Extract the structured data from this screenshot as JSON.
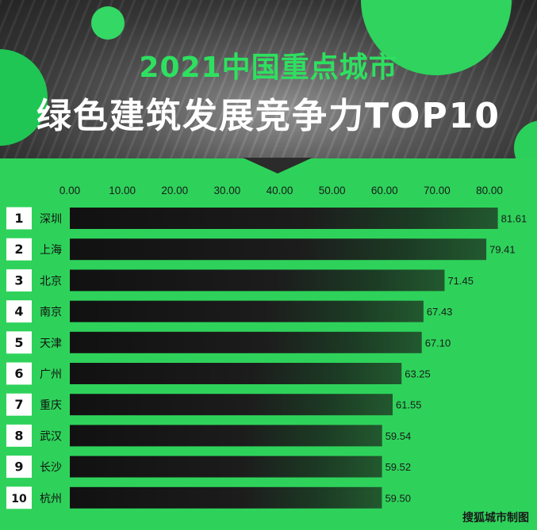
{
  "header": {
    "subtitle": "2021中国重点城市",
    "title": "绿色建筑发展竞争力TOP10"
  },
  "source": "搜狐城市制图",
  "colors": {
    "background": "#2ed25a",
    "bar_dark": "#1b1b1b",
    "rank_box": "#ffffff",
    "accent": "#2ee05f"
  },
  "chart_data": {
    "type": "bar",
    "orientation": "horizontal",
    "xlim": [
      0,
      80
    ],
    "x_ticks": [
      "0.00",
      "10.00",
      "20.00",
      "30.00",
      "40.00",
      "50.00",
      "60.00",
      "70.00",
      "80.00"
    ],
    "ranks": [
      "1",
      "2",
      "3",
      "4",
      "5",
      "6",
      "7",
      "8",
      "9",
      "10"
    ],
    "categories": [
      "深圳",
      "上海",
      "北京",
      "南京",
      "天津",
      "广州",
      "重庆",
      "武汉",
      "长沙",
      "杭州"
    ],
    "values": [
      81.61,
      79.41,
      71.45,
      67.43,
      67.1,
      63.25,
      61.55,
      59.54,
      59.52,
      59.5
    ],
    "value_labels": [
      "81.61",
      "79.41",
      "71.45",
      "67.43",
      "67.10",
      "63.25",
      "61.55",
      "59.54",
      "59.52",
      "59.50"
    ]
  }
}
